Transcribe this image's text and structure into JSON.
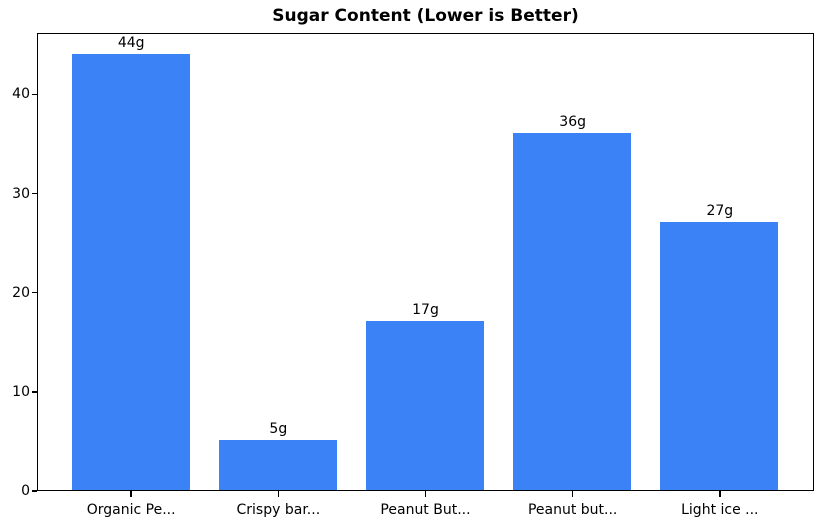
{
  "chart_data": {
    "type": "bar",
    "title": "Sugar Content (Lower is Better)",
    "categories": [
      "Organic Pe...",
      "Crispy bar...",
      "Peanut But...",
      "Peanut but...",
      "Light ice ..."
    ],
    "values": [
      44,
      5,
      17,
      36,
      27
    ],
    "bar_labels": [
      "44g",
      "5g",
      "17g",
      "36g",
      "27g"
    ],
    "yticks": [
      0,
      10,
      20,
      30,
      40
    ],
    "ylim": [
      0,
      46.2
    ],
    "xlabel": "",
    "ylabel": "",
    "grid": false,
    "legend_position": "none",
    "bar_color": "#3b82f6",
    "text_color": "#000000",
    "background_color": "#ffffff"
  }
}
